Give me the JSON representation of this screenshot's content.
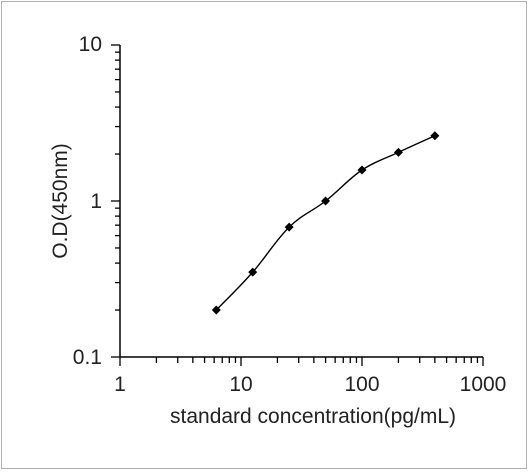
{
  "chart_data": {
    "type": "line",
    "xlabel": "standard concentration(pg/mL)",
    "ylabel": "O.D(450nm)",
    "x_scale": "log",
    "y_scale": "log",
    "xlim": [
      1,
      1000
    ],
    "ylim": [
      0.1,
      10
    ],
    "x_ticks": [
      "1",
      "10",
      "100",
      "1000"
    ],
    "y_ticks": [
      "0.1",
      "1",
      "10"
    ],
    "grid": false,
    "legend": "none",
    "marker": "diamond",
    "line_color": "#000000",
    "series": [
      {
        "x": [
          6.25,
          12.5,
          25,
          50,
          100,
          200,
          400
        ],
        "y": [
          0.2,
          0.35,
          0.68,
          1.0,
          1.58,
          2.05,
          2.62
        ]
      }
    ]
  }
}
